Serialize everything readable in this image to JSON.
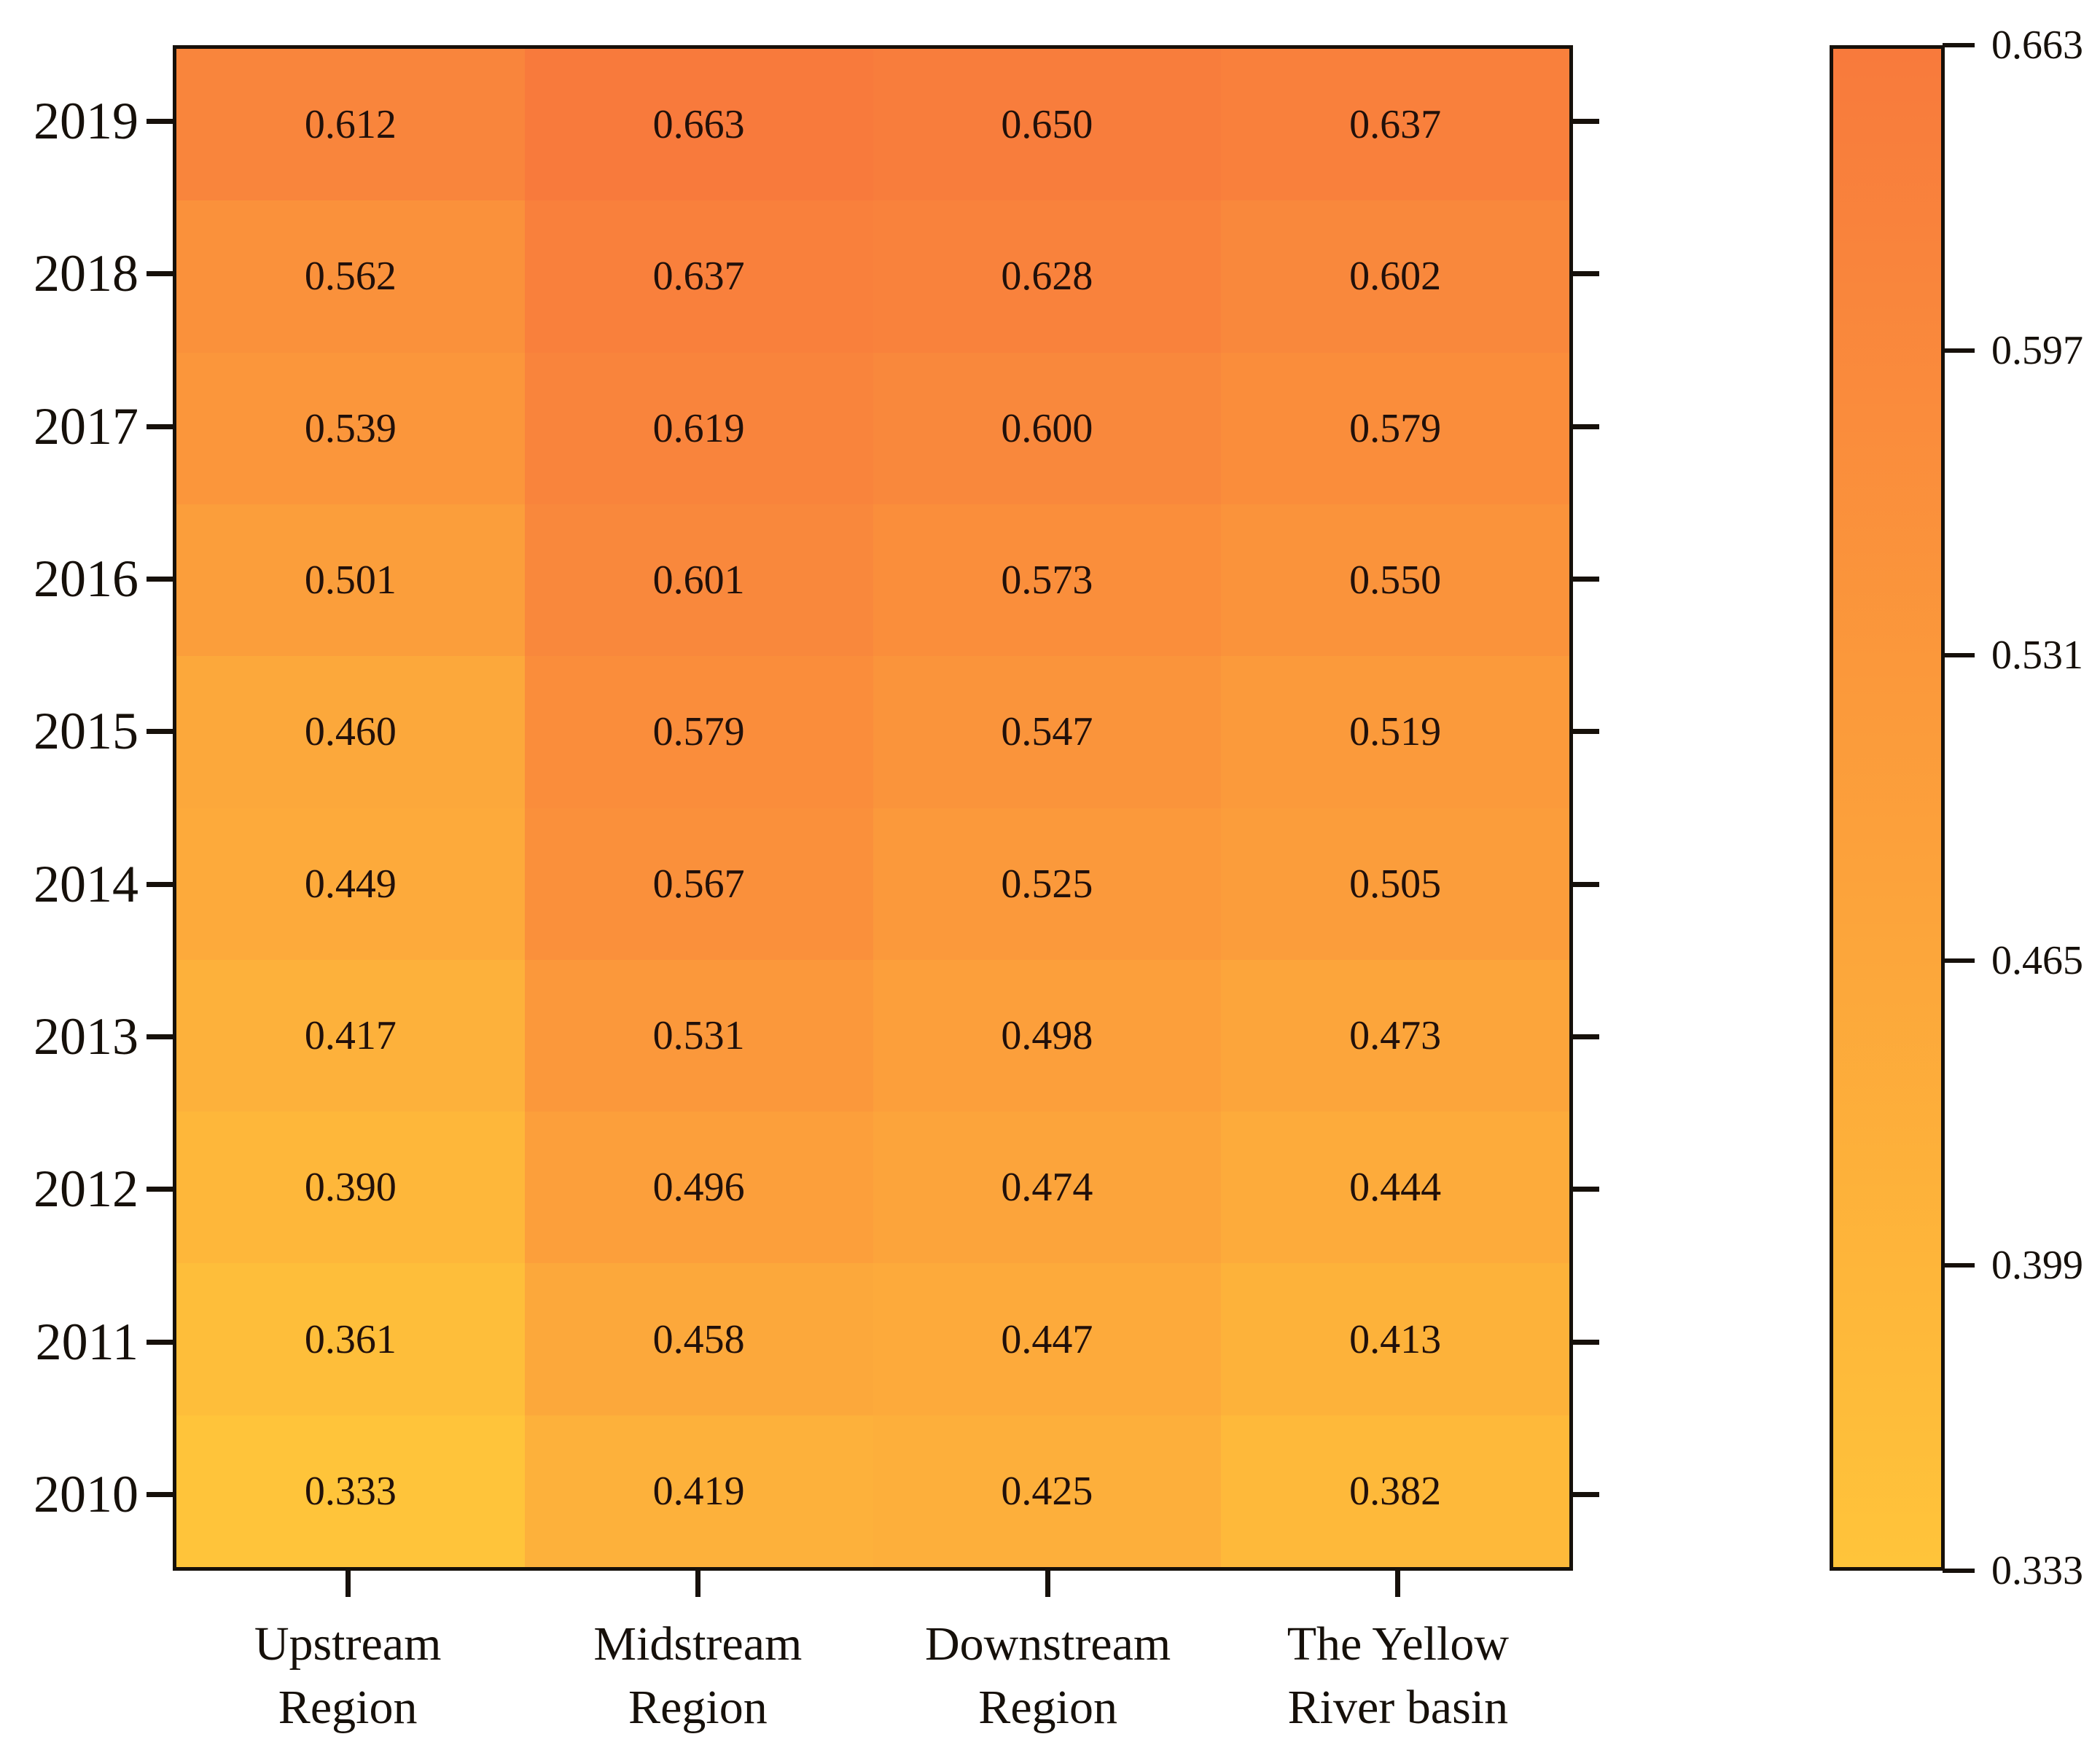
{
  "chart_data": {
    "type": "heatmap",
    "title": "",
    "xlabel": "",
    "ylabel": "",
    "grid": false,
    "y_categories": [
      "2019",
      "2018",
      "2017",
      "2016",
      "2015",
      "2014",
      "2013",
      "2012",
      "2011",
      "2010"
    ],
    "x_categories": [
      [
        "Upstream",
        "Region"
      ],
      [
        "Midstream",
        "Region"
      ],
      [
        "Downstream",
        "Region"
      ],
      [
        "The Yellow",
        "River basin"
      ]
    ],
    "values": [
      [
        0.612,
        0.663,
        0.65,
        0.637
      ],
      [
        0.562,
        0.637,
        0.628,
        0.602
      ],
      [
        0.539,
        0.619,
        0.6,
        0.579
      ],
      [
        0.501,
        0.601,
        0.573,
        0.55
      ],
      [
        0.46,
        0.579,
        0.547,
        0.519
      ],
      [
        0.449,
        0.567,
        0.525,
        0.505
      ],
      [
        0.417,
        0.531,
        0.498,
        0.473
      ],
      [
        0.39,
        0.496,
        0.474,
        0.444
      ],
      [
        0.361,
        0.458,
        0.447,
        0.413
      ],
      [
        0.333,
        0.419,
        0.425,
        0.382
      ]
    ],
    "value_decimals": 3,
    "colorbar": {
      "position": "right",
      "vmin": 0.333,
      "vmax": 0.663,
      "tick_labels": [
        "0.663",
        "0.597",
        "0.531",
        "0.465",
        "0.399",
        "0.333"
      ],
      "color_min": "#FFC43A",
      "color_max": "#F87A3C"
    },
    "colors": {
      "annotation": "#21100a",
      "axis": "#16100a",
      "background": "#ffffff"
    }
  }
}
